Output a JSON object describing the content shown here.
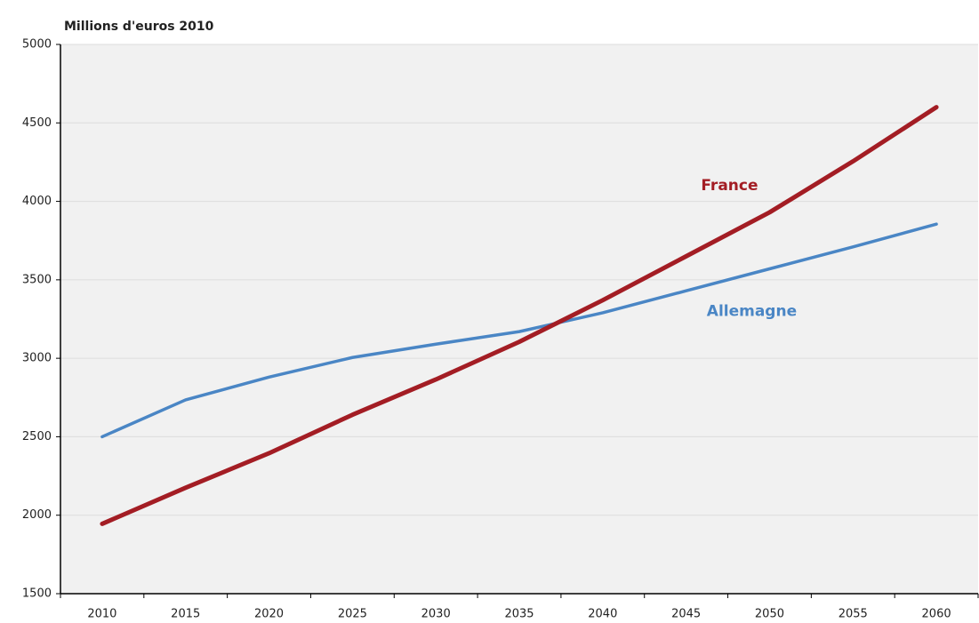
{
  "chart_data": {
    "type": "line",
    "title": "Millions d'euros 2010",
    "categories": [
      "2010",
      "2015",
      "2020",
      "2025",
      "2030",
      "2035",
      "2040",
      "2045",
      "2050",
      "2055",
      "2060"
    ],
    "series": [
      {
        "name": "Allemagne",
        "color": "#4a86c5",
        "values": [
          2500,
          2735,
          2880,
          3005,
          3090,
          3170,
          3290,
          3430,
          3570,
          3710,
          3855
        ]
      },
      {
        "name": "France",
        "color": "#a31d24",
        "values": [
          1945,
          2175,
          2395,
          2640,
          2865,
          3105,
          3370,
          3650,
          3930,
          4255,
          4600
        ]
      }
    ],
    "ylim": [
      1500,
      5000
    ],
    "yticks": [
      1500,
      2000,
      2500,
      3000,
      3500,
      4000,
      4500,
      5000
    ],
    "grid": true
  }
}
